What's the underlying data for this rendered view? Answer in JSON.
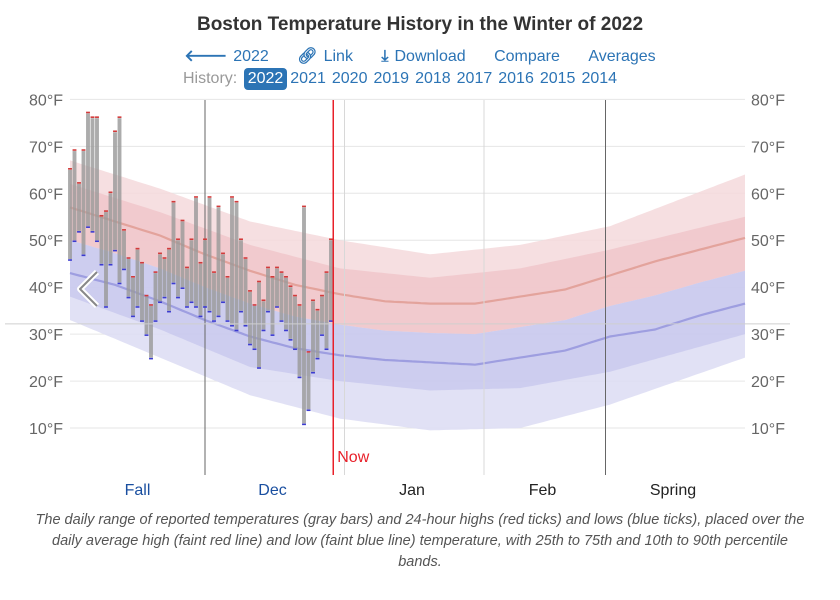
{
  "title": "Boston Temperature History in the Winter of 2022",
  "nav": {
    "prev": {
      "icon": "arrow-left-icon",
      "label": "2022"
    },
    "link": {
      "icon": "link-icon",
      "label": "Link"
    },
    "download": {
      "icon": "download-icon",
      "label": "Download"
    },
    "compare": "Compare",
    "averages": "Averages"
  },
  "history": {
    "label": "History:",
    "years": [
      "2022",
      "2021",
      "2020",
      "2019",
      "2018",
      "2017",
      "2016",
      "2015",
      "2014"
    ],
    "active": "2022"
  },
  "caption": "The daily range of reported temperatures (gray bars) and 24-hour highs (red ticks) and lows (blue ticks), placed over the daily average high (faint red line) and low (faint blue line) temperature, with 25th to 75th and 10th to 90th percentile bands.",
  "colors": {
    "accent": "#2c74b5",
    "now": "#e8202a",
    "bars": "#9a9a9a",
    "high": "#e06666",
    "low": "#6f6fd8"
  },
  "chart_data": {
    "type": "range-bar",
    "title": "Boston Temperature History in the Winter of 2022",
    "y_unit": "°F",
    "ylim": [
      0,
      82
    ],
    "y_ticks": [
      10,
      20,
      30,
      40,
      50,
      60,
      70,
      80
    ],
    "y_tick_labels": [
      "10°F",
      "20°F",
      "30°F",
      "40°F",
      "50°F",
      "60°F",
      "70°F",
      "80°F"
    ],
    "x_days": 150,
    "x_start": "Nov 1",
    "season_labels": [
      {
        "label": "Fall",
        "day": 15,
        "highlight": true
      },
      {
        "label": "Dec",
        "day": 45,
        "highlight": true
      },
      {
        "label": "Jan",
        "day": 76,
        "highlight": false
      },
      {
        "label": "Feb",
        "day": 105,
        "highlight": false
      },
      {
        "label": "Spring",
        "day": 134,
        "highlight": false
      }
    ],
    "season_boundaries": [
      30,
      119
    ],
    "month_boundaries": [
      61,
      92
    ],
    "now": {
      "label": "Now",
      "day": 58.5
    },
    "avg_high": [
      [
        0,
        57
      ],
      [
        10,
        54
      ],
      [
        20,
        51
      ],
      [
        30,
        47
      ],
      [
        40,
        43.5
      ],
      [
        50,
        40.5
      ],
      [
        60,
        38.5
      ],
      [
        70,
        37
      ],
      [
        80,
        36.5
      ],
      [
        90,
        36.5
      ],
      [
        100,
        38
      ],
      [
        110,
        39.5
      ],
      [
        120,
        42.5
      ],
      [
        130,
        45.5
      ],
      [
        140,
        48
      ],
      [
        150,
        50.5
      ]
    ],
    "avg_low": [
      [
        0,
        43
      ],
      [
        10,
        40.5
      ],
      [
        20,
        37
      ],
      [
        30,
        33
      ],
      [
        40,
        29.5
      ],
      [
        50,
        27
      ],
      [
        60,
        25.5
      ],
      [
        70,
        24.5
      ],
      [
        80,
        24
      ],
      [
        90,
        23.5
      ],
      [
        100,
        25
      ],
      [
        110,
        26.5
      ],
      [
        120,
        29.5
      ],
      [
        130,
        31
      ],
      [
        140,
        34
      ],
      [
        150,
        36.5
      ]
    ],
    "p75_high": [
      [
        0,
        62
      ],
      [
        20,
        56
      ],
      [
        40,
        49
      ],
      [
        60,
        44
      ],
      [
        80,
        42
      ],
      [
        100,
        44
      ],
      [
        120,
        48
      ],
      [
        150,
        55
      ]
    ],
    "p25_low": [
      [
        0,
        38
      ],
      [
        20,
        31
      ],
      [
        40,
        23
      ],
      [
        60,
        20
      ],
      [
        80,
        18
      ],
      [
        100,
        18.5
      ],
      [
        120,
        22
      ],
      [
        150,
        30
      ]
    ],
    "p90_high": [
      [
        0,
        67
      ],
      [
        20,
        61
      ],
      [
        40,
        54
      ],
      [
        60,
        50
      ],
      [
        80,
        47
      ],
      [
        100,
        49
      ],
      [
        120,
        53
      ],
      [
        150,
        64
      ]
    ],
    "p10_low": [
      [
        0,
        33
      ],
      [
        20,
        25
      ],
      [
        40,
        17
      ],
      [
        60,
        12
      ],
      [
        80,
        9.5
      ],
      [
        100,
        10
      ],
      [
        120,
        15
      ],
      [
        150,
        25
      ]
    ],
    "days": [
      {
        "day": 0,
        "low": 46,
        "high": 65
      },
      {
        "day": 1,
        "low": 50,
        "high": 69
      },
      {
        "day": 2,
        "low": 52,
        "high": 62
      },
      {
        "day": 3,
        "low": 47,
        "high": 69
      },
      {
        "day": 4,
        "low": 53,
        "high": 77
      },
      {
        "day": 5,
        "low": 52,
        "high": 76
      },
      {
        "day": 6,
        "low": 50,
        "high": 76
      },
      {
        "day": 7,
        "low": 45,
        "high": 55
      },
      {
        "day": 8,
        "low": 36,
        "high": 56
      },
      {
        "day": 9,
        "low": 45,
        "high": 60
      },
      {
        "day": 10,
        "low": 48,
        "high": 73
      },
      {
        "day": 11,
        "low": 41,
        "high": 76
      },
      {
        "day": 12,
        "low": 44,
        "high": 52
      },
      {
        "day": 13,
        "low": 38,
        "high": 46
      },
      {
        "day": 14,
        "low": 34,
        "high": 42
      },
      {
        "day": 15,
        "low": 36,
        "high": 48
      },
      {
        "day": 16,
        "low": 33,
        "high": 45
      },
      {
        "day": 17,
        "low": 30,
        "high": 38
      },
      {
        "day": 18,
        "low": 25,
        "high": 36
      },
      {
        "day": 19,
        "low": 33,
        "high": 43
      },
      {
        "day": 20,
        "low": 37,
        "high": 47
      },
      {
        "day": 21,
        "low": 38,
        "high": 46
      },
      {
        "day": 22,
        "low": 35,
        "high": 48
      },
      {
        "day": 23,
        "low": 41,
        "high": 58
      },
      {
        "day": 24,
        "low": 38,
        "high": 50
      },
      {
        "day": 25,
        "low": 40,
        "high": 54
      },
      {
        "day": 26,
        "low": 36,
        "high": 44
      },
      {
        "day": 27,
        "low": 37,
        "high": 50
      },
      {
        "day": 28,
        "low": 36,
        "high": 59
      },
      {
        "day": 29,
        "low": 34,
        "high": 45
      },
      {
        "day": 30,
        "low": 36,
        "high": 50
      },
      {
        "day": 31,
        "low": 35,
        "high": 59
      },
      {
        "day": 32,
        "low": 33,
        "high": 43
      },
      {
        "day": 33,
        "low": 34,
        "high": 57
      },
      {
        "day": 34,
        "low": 37,
        "high": 47
      },
      {
        "day": 35,
        "low": 33,
        "high": 42
      },
      {
        "day": 36,
        "low": 32,
        "high": 59
      },
      {
        "day": 37,
        "low": 31,
        "high": 58
      },
      {
        "day": 38,
        "low": 35,
        "high": 50
      },
      {
        "day": 39,
        "low": 32,
        "high": 46
      },
      {
        "day": 40,
        "low": 28,
        "high": 39
      },
      {
        "day": 41,
        "low": 27,
        "high": 36
      },
      {
        "day": 42,
        "low": 23,
        "high": 41
      },
      {
        "day": 43,
        "low": 31,
        "high": 37
      },
      {
        "day": 44,
        "low": 35,
        "high": 44
      },
      {
        "day": 45,
        "low": 30,
        "high": 42
      },
      {
        "day": 46,
        "low": 36,
        "high": 44
      },
      {
        "day": 47,
        "low": 33,
        "high": 43
      },
      {
        "day": 48,
        "low": 31,
        "high": 42
      },
      {
        "day": 49,
        "low": 29,
        "high": 40
      },
      {
        "day": 50,
        "low": 27,
        "high": 38
      },
      {
        "day": 51,
        "low": 21,
        "high": 36
      },
      {
        "day": 52,
        "low": 11,
        "high": 57
      },
      {
        "day": 53,
        "low": 14,
        "high": 26
      },
      {
        "day": 54,
        "low": 22,
        "high": 37
      },
      {
        "day": 55,
        "low": 25,
        "high": 35
      },
      {
        "day": 56,
        "low": 30,
        "high": 38
      },
      {
        "day": 57,
        "low": 27,
        "high": 43
      },
      {
        "day": 58,
        "low": 33,
        "high": 50
      }
    ]
  }
}
